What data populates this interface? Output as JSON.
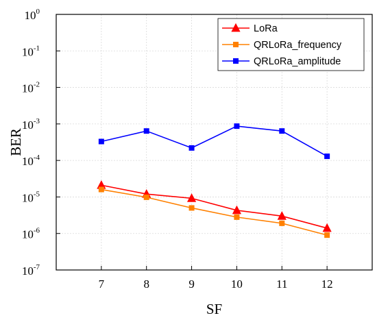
{
  "chart_data": {
    "type": "line",
    "xlabel": "SF",
    "ylabel": "BER",
    "x": [
      7,
      8,
      9,
      10,
      11,
      12
    ],
    "x_ticks": [
      "7",
      "8",
      "9",
      "10",
      "11",
      "12"
    ],
    "xlim": [
      6,
      13
    ],
    "ylim": [
      1e-07,
      1
    ],
    "y_scale": "log",
    "y_ticks": [
      {
        "base": "10",
        "exp": "0"
      },
      {
        "base": "10",
        "exp": "-1"
      },
      {
        "base": "10",
        "exp": "-2"
      },
      {
        "base": "10",
        "exp": "-3"
      },
      {
        "base": "10",
        "exp": "-4"
      },
      {
        "base": "10",
        "exp": "-5"
      },
      {
        "base": "10",
        "exp": "-6"
      },
      {
        "base": "10",
        "exp": "-7"
      }
    ],
    "grid": true,
    "legend_position": "top-right",
    "series": [
      {
        "name": "LoRa",
        "color": "#ff0000",
        "marker": "triangle",
        "values": [
          2.1e-05,
          1.2e-05,
          9.2e-06,
          4.3e-06,
          3e-06,
          1.4e-06
        ]
      },
      {
        "name": "QRLoRa_frequency",
        "color": "#ff8000",
        "marker": "square",
        "values": [
          1.6e-05,
          9.8e-06,
          5e-06,
          2.8e-06,
          1.9e-06,
          9e-07
        ]
      },
      {
        "name": "QRLoRa_amplitude",
        "color": "#0000ff",
        "marker": "square",
        "values": [
          0.00033,
          0.00064,
          0.00022,
          0.00087,
          0.00064,
          0.00013
        ]
      }
    ]
  }
}
